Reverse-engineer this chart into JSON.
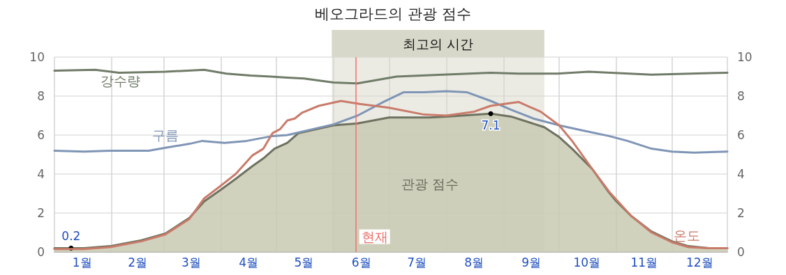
{
  "chart_data": {
    "type": "line",
    "title": "베오그라드의 관광 점수",
    "xlim": [
      "--01-01",
      "--12-31"
    ],
    "xticks": [
      {
        "value": "--01-01",
        "label": null
      },
      {
        "value": "--01-16",
        "label": "1월"
      },
      {
        "value": "--02-01",
        "label": null
      },
      {
        "value": "--02-15",
        "label": "2월"
      },
      {
        "value": "--03-01",
        "label": null
      },
      {
        "value": "--03-16",
        "label": "3월"
      },
      {
        "value": "--04-01",
        "label": null
      },
      {
        "value": "--04-16",
        "label": "4월"
      },
      {
        "value": "--05-01",
        "label": null
      },
      {
        "value": "--05-16",
        "label": "5월"
      },
      {
        "value": "--06-01",
        "label": null
      },
      {
        "value": "--06-16",
        "label": "6월"
      },
      {
        "value": "--07-01",
        "label": null
      },
      {
        "value": "--07-16",
        "label": "7월"
      },
      {
        "value": "--08-01",
        "label": null
      },
      {
        "value": "--08-16",
        "label": "8월"
      },
      {
        "value": "--09-01",
        "label": null
      },
      {
        "value": "--09-16",
        "label": "9월"
      },
      {
        "value": "--10-01",
        "label": null
      },
      {
        "value": "--10-16",
        "label": "10월"
      },
      {
        "value": "--11-01",
        "label": null
      },
      {
        "value": "--11-16",
        "label": "11월"
      },
      {
        "value": "--12-01",
        "label": null
      },
      {
        "value": "--12-16",
        "label": "12월"
      },
      {
        "value": "--12-31",
        "label": null
      }
    ],
    "ylim": [
      0,
      10
    ],
    "yticks": [
      0,
      2,
      4,
      6,
      8,
      10
    ],
    "y2lim": [
      0,
      10
    ],
    "y2ticks": [
      0,
      2,
      4,
      6,
      8,
      10
    ],
    "grid": true,
    "marker": "none",
    "line_style": "solid",
    "series": [
      {
        "name": "강수량",
        "color": "#707b68",
        "x": [
          "--01-01",
          "--01-23",
          "--02-05",
          "--03-02",
          "--03-23",
          "--04-04",
          "--04-17",
          "--04-28",
          "--05-07",
          "--05-16",
          "--06-01",
          "--06-14",
          "--07-05",
          "--07-30",
          "--08-25",
          "--09-09",
          "--09-30",
          "--10-17",
          "--11-20",
          "--12-31"
        ],
        "values": [
          9.3,
          9.35,
          9.2,
          9.25,
          9.35,
          9.15,
          9.05,
          9.0,
          8.95,
          8.9,
          8.7,
          8.65,
          9.0,
          9.1,
          9.2,
          9.15,
          9.15,
          9.25,
          9.1,
          9.2
        ]
      },
      {
        "name": "구름",
        "color": "#7f95b5",
        "x": [
          "--01-01",
          "--01-17",
          "--01-31",
          "--02-21",
          "--03-02",
          "--03-15",
          "--03-22",
          "--04-03",
          "--04-15",
          "--04-29",
          "--05-07",
          "--05-16",
          "--06-01",
          "--06-14",
          "--06-28",
          "--07-09",
          "--07-20",
          "--08-01",
          "--08-12",
          "--08-25",
          "--09-05",
          "--09-17",
          "--10-01",
          "--10-13",
          "--10-28",
          "--11-07",
          "--11-20",
          "--12-01",
          "--12-13",
          "--12-31"
        ],
        "values": [
          5.2,
          5.15,
          5.2,
          5.2,
          5.35,
          5.55,
          5.7,
          5.6,
          5.7,
          5.95,
          6.0,
          6.2,
          6.55,
          7.0,
          7.7,
          8.2,
          8.2,
          8.25,
          8.2,
          7.75,
          7.3,
          6.85,
          6.5,
          6.25,
          5.95,
          5.7,
          5.3,
          5.15,
          5.1,
          5.15
        ]
      },
      {
        "name": "관광 점수",
        "type": "area",
        "color": "#6e725f",
        "x": [
          "--01-01",
          "--01-10",
          "--01-17",
          "--01-31",
          "--02-17",
          "--03-02",
          "--03-15",
          "--03-23",
          "--04-01",
          "--04-09",
          "--04-18",
          "--04-24",
          "--04-30",
          "--05-07",
          "--05-13",
          "--06-01",
          "--06-14",
          "--07-01",
          "--07-23",
          "--08-01",
          "--08-25",
          "--09-05",
          "--09-23",
          "--10-01",
          "--10-08",
          "--10-19",
          "--10-28",
          "--11-01",
          "--11-09",
          "--11-20",
          "--12-01",
          "--12-10",
          "--12-21",
          "--12-31"
        ],
        "values": [
          0.2,
          0.2,
          0.2,
          0.3,
          0.6,
          0.95,
          1.75,
          2.6,
          3.2,
          3.75,
          4.4,
          4.8,
          5.3,
          5.6,
          6.1,
          6.5,
          6.6,
          6.9,
          6.9,
          6.95,
          7.1,
          6.95,
          6.4,
          5.9,
          5.3,
          4.25,
          3.05,
          2.6,
          1.85,
          1.05,
          0.55,
          0.3,
          0.2,
          0.2
        ],
        "value_labels": [
          null,
          "0.2",
          null,
          null,
          null,
          null,
          null,
          null,
          null,
          null,
          null,
          null,
          null,
          null,
          null,
          null,
          null,
          null,
          null,
          null,
          "7.1",
          null,
          null,
          null,
          null,
          null,
          null,
          null,
          null,
          null,
          null,
          null,
          null,
          null
        ]
      },
      {
        "name": "온도",
        "color": "#c97b6a",
        "x": [
          "--01-01",
          "--01-17",
          "--01-31",
          "--02-17",
          "--03-02",
          "--03-15",
          "--03-23",
          "--04-01",
          "--04-09",
          "--04-18",
          "--04-24",
          "--04-29",
          "--05-03",
          "--05-07",
          "--05-11",
          "--05-15",
          "--05-24",
          "--06-05",
          "--06-15",
          "--07-01",
          "--07-20",
          "--08-01",
          "--08-16",
          "--08-25",
          "--09-09",
          "--09-21",
          "--10-01",
          "--10-08",
          "--10-19",
          "--10-28",
          "--11-09",
          "--11-20",
          "--12-01",
          "--12-10",
          "--12-21",
          "--12-31"
        ],
        "values": [
          0.15,
          0.15,
          0.25,
          0.55,
          0.9,
          1.7,
          2.75,
          3.4,
          4.0,
          4.95,
          5.3,
          6.1,
          6.3,
          6.75,
          6.85,
          7.15,
          7.5,
          7.75,
          7.6,
          7.4,
          7.05,
          7.0,
          7.2,
          7.5,
          7.7,
          7.2,
          6.5,
          5.7,
          4.25,
          3.1,
          1.85,
          1.0,
          0.5,
          0.25,
          0.2,
          0.2
        ]
      }
    ],
    "bands": [
      {
        "axis": "x",
        "from": "--05-31",
        "to": "--09-23",
        "label": "최고의 시간",
        "color": "#d8d8ca"
      }
    ],
    "ref_lines": [
      {
        "axis": "x",
        "value": "--06-13",
        "label": "현재",
        "color": "#f07068"
      }
    ]
  }
}
